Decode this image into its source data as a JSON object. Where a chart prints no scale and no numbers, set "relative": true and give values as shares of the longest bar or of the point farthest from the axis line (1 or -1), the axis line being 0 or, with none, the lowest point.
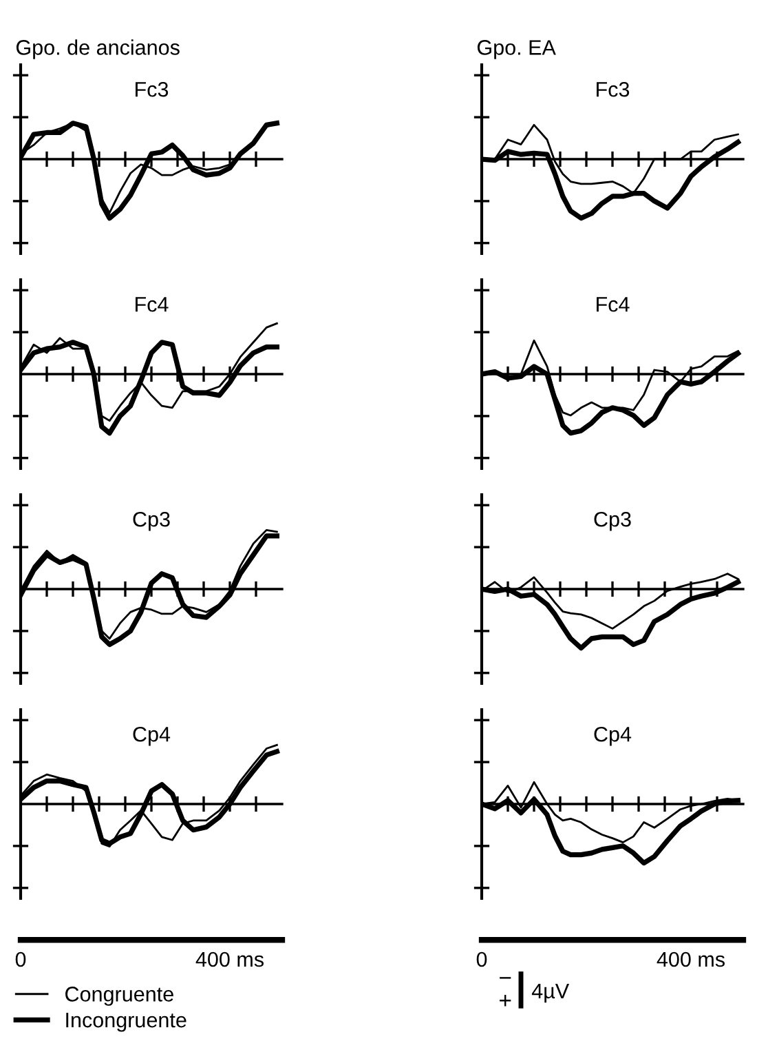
{
  "chart_data": [
    {
      "type": "line",
      "subtitle": "Gpo. de ancianos",
      "title": "Fc3",
      "relative": true,
      "x": [
        0,
        25,
        50,
        75,
        100,
        125,
        140,
        155,
        170,
        190,
        210,
        230,
        250,
        270,
        290,
        310,
        330,
        355,
        380,
        400,
        420,
        445,
        470,
        490
      ],
      "xlim": [
        0,
        500
      ],
      "xticks": [
        {
          "value": 50,
          "label": null
        },
        {
          "value": 100,
          "label": null
        },
        {
          "value": 150,
          "label": null
        },
        {
          "value": 200,
          "label": null
        },
        {
          "value": 250,
          "label": null
        },
        {
          "value": 300,
          "label": null
        },
        {
          "value": 350,
          "label": null
        },
        {
          "value": 400,
          "label": null
        },
        {
          "value": 450,
          "label": null
        }
      ],
      "tick_labels": false,
      "series": [
        {
          "color": "#000000",
          "values": [
            0.09,
            0.24,
            0.45,
            0.52,
            0.61,
            0.48,
            0.06,
            -0.67,
            -0.91,
            -0.55,
            -0.24,
            -0.09,
            -0.15,
            -0.27,
            -0.27,
            -0.18,
            -0.12,
            -0.18,
            -0.15,
            -0.09,
            0.06,
            0.24,
            0.55,
            0.61
          ]
        },
        {
          "color": "#000000",
          "values": [
            0.03,
            0.42,
            0.45,
            0.45,
            0.61,
            0.55,
            0,
            -0.76,
            -1,
            -0.85,
            -0.61,
            -0.27,
            0.09,
            0.12,
            0.24,
            0.06,
            -0.18,
            -0.27,
            -0.24,
            -0.15,
            0.09,
            0.27,
            0.58,
            0.61
          ]
        }
      ]
    },
    {
      "type": "line",
      "title": "Fc4",
      "relative": true,
      "x": [
        0,
        25,
        50,
        75,
        100,
        125,
        140,
        155,
        170,
        190,
        210,
        230,
        250,
        270,
        290,
        310,
        330,
        355,
        380,
        400,
        420,
        445,
        470,
        490
      ],
      "xlim": [
        0,
        500
      ],
      "xticks": [
        {
          "value": 50,
          "label": null
        },
        {
          "value": 100,
          "label": null
        },
        {
          "value": 150,
          "label": null
        },
        {
          "value": 200,
          "label": null
        },
        {
          "value": 250,
          "label": null
        },
        {
          "value": 300,
          "label": null
        },
        {
          "value": 350,
          "label": null
        },
        {
          "value": 400,
          "label": null
        },
        {
          "value": 450,
          "label": null
        }
      ],
      "tick_labels": false,
      "series": [
        {
          "color": "#000000",
          "values": [
            0.11,
            0.5,
            0.36,
            0.61,
            0.43,
            0.43,
            0,
            -0.71,
            -0.79,
            -0.54,
            -0.32,
            -0.14,
            -0.36,
            -0.54,
            -0.57,
            -0.29,
            -0.29,
            -0.29,
            -0.21,
            0,
            0.29,
            0.54,
            0.79,
            0.86
          ]
        },
        {
          "color": "#000000",
          "values": [
            0.07,
            0.36,
            0.43,
            0.46,
            0.54,
            0.46,
            0,
            -0.89,
            -1,
            -0.71,
            -0.54,
            -0.11,
            0.36,
            0.54,
            0.5,
            -0.21,
            -0.32,
            -0.32,
            -0.36,
            -0.14,
            0.14,
            0.36,
            0.46,
            0.46
          ]
        }
      ]
    },
    {
      "type": "line",
      "title": "Cp3",
      "relative": true,
      "x": [
        0,
        25,
        50,
        75,
        100,
        125,
        140,
        155,
        170,
        190,
        210,
        230,
        250,
        270,
        290,
        310,
        330,
        355,
        380,
        400,
        420,
        445,
        470,
        490
      ],
      "xlim": [
        0,
        500
      ],
      "xticks": [
        {
          "value": 50,
          "label": null
        },
        {
          "value": 100,
          "label": null
        },
        {
          "value": 150,
          "label": null
        },
        {
          "value": 200,
          "label": null
        },
        {
          "value": 250,
          "label": null
        },
        {
          "value": 300,
          "label": null
        },
        {
          "value": 350,
          "label": null
        },
        {
          "value": 400,
          "label": null
        },
        {
          "value": 450,
          "label": null
        }
      ],
      "tick_labels": false,
      "series": [
        {
          "color": "#000000",
          "values": [
            -0.03,
            0.39,
            0.65,
            0.45,
            0.58,
            0.45,
            -0.1,
            -0.71,
            -0.84,
            -0.58,
            -0.39,
            -0.32,
            -0.35,
            -0.42,
            -0.42,
            -0.29,
            -0.32,
            -0.39,
            -0.26,
            -0.03,
            0.39,
            0.77,
            1,
            0.97
          ]
        },
        {
          "color": "#000000",
          "values": [
            -0.1,
            0.32,
            0.58,
            0.45,
            0.52,
            0.42,
            -0.16,
            -0.81,
            -0.94,
            -0.84,
            -0.71,
            -0.39,
            0.1,
            0.26,
            0.19,
            -0.26,
            -0.45,
            -0.48,
            -0.29,
            -0.1,
            0.26,
            0.58,
            0.9,
            0.9
          ]
        }
      ]
    },
    {
      "type": "line",
      "title": "Cp4",
      "relative": true,
      "x": [
        0,
        25,
        50,
        75,
        100,
        125,
        140,
        155,
        170,
        190,
        210,
        230,
        250,
        270,
        290,
        310,
        330,
        355,
        380,
        400,
        420,
        445,
        470,
        490
      ],
      "xlim": [
        0,
        500
      ],
      "xticks": [
        0,
        {
          "value": 50,
          "label": null
        },
        {
          "value": 100,
          "label": null
        },
        {
          "value": 150,
          "label": null
        },
        {
          "value": 200,
          "label": null
        },
        {
          "value": 250,
          "label": null
        },
        {
          "value": 300,
          "label": null
        },
        {
          "value": 350,
          "label": null
        },
        {
          "value": 400,
          "label": "400 ms"
        },
        {
          "value": 450,
          "label": null
        }
      ],
      "tick_labels": "x",
      "legend": "bottom",
      "series": [
        {
          "name": "Congruente",
          "color": "#000000",
          "values": [
            0.14,
            0.39,
            0.5,
            0.44,
            0.39,
            0.22,
            -0.17,
            -0.67,
            -0.72,
            -0.44,
            -0.28,
            -0.11,
            -0.33,
            -0.56,
            -0.61,
            -0.33,
            -0.28,
            -0.28,
            -0.11,
            0.11,
            0.39,
            0.67,
            0.94,
            1
          ]
        },
        {
          "name": "Incongruente",
          "color": "#000000",
          "values": [
            0.08,
            0.28,
            0.39,
            0.39,
            0.33,
            0.28,
            -0.14,
            -0.61,
            -0.67,
            -0.56,
            -0.5,
            -0.17,
            0.22,
            0.33,
            0.17,
            -0.28,
            -0.44,
            -0.39,
            -0.22,
            0,
            0.28,
            0.56,
            0.83,
            0.89
          ]
        }
      ]
    },
    {
      "type": "line",
      "subtitle": "Gpo. EA",
      "title": "Fc3",
      "relative": true,
      "x": [
        0,
        25,
        50,
        75,
        100,
        125,
        140,
        155,
        170,
        190,
        210,
        230,
        250,
        270,
        290,
        310,
        330,
        355,
        380,
        400,
        420,
        445,
        470,
        490
      ],
      "xlim": [
        0,
        500
      ],
      "xticks": [
        {
          "value": 50,
          "label": null
        },
        {
          "value": 100,
          "label": null
        },
        {
          "value": 150,
          "label": null
        },
        {
          "value": 200,
          "label": null
        },
        {
          "value": 250,
          "label": null
        },
        {
          "value": 300,
          "label": null
        },
        {
          "value": 350,
          "label": null
        },
        {
          "value": 400,
          "label": null
        },
        {
          "value": 450,
          "label": null
        }
      ],
      "tick_labels": false,
      "series": [
        {
          "color": "#000000",
          "values": [
            0,
            0,
            0.33,
            0.25,
            0.58,
            0.33,
            -0.04,
            -0.25,
            -0.38,
            -0.42,
            -0.42,
            -0.4,
            -0.38,
            -0.46,
            -0.58,
            -0.33,
            0,
            0,
            0,
            0.13,
            0.13,
            0.33,
            0.38,
            0.42
          ]
        },
        {
          "color": "#000000",
          "values": [
            0,
            -0.02,
            0.13,
            0.08,
            0.1,
            0.08,
            -0.25,
            -0.63,
            -0.88,
            -1,
            -0.92,
            -0.75,
            -0.63,
            -0.63,
            -0.58,
            -0.58,
            -0.71,
            -0.83,
            -0.58,
            -0.29,
            -0.13,
            0.04,
            0.17,
            0.29
          ]
        }
      ]
    },
    {
      "type": "line",
      "title": "Fc4",
      "relative": true,
      "x": [
        0,
        25,
        50,
        75,
        100,
        125,
        140,
        155,
        170,
        190,
        210,
        230,
        250,
        270,
        290,
        310,
        330,
        355,
        380,
        400,
        420,
        445,
        470,
        490
      ],
      "xlim": [
        0,
        500
      ],
      "xticks": [
        {
          "value": 50,
          "label": null
        },
        {
          "value": 100,
          "label": null
        },
        {
          "value": 150,
          "label": null
        },
        {
          "value": 200,
          "label": null
        },
        {
          "value": 250,
          "label": null
        },
        {
          "value": 300,
          "label": null
        },
        {
          "value": 350,
          "label": null
        },
        {
          "value": 400,
          "label": null
        },
        {
          "value": 450,
          "label": null
        }
      ],
      "tick_labels": false,
      "series": [
        {
          "color": "#000000",
          "values": [
            0,
            0.04,
            -0.07,
            0,
            0.57,
            0.13,
            -0.35,
            -0.65,
            -0.7,
            -0.57,
            -0.48,
            -0.57,
            -0.57,
            -0.57,
            -0.61,
            -0.35,
            0.07,
            0.04,
            -0.13,
            0.09,
            0.13,
            0.3,
            0.3,
            0.39
          ]
        },
        {
          "color": "#000000",
          "values": [
            0,
            0.04,
            -0.07,
            -0.04,
            0.13,
            0,
            -0.43,
            -0.87,
            -1,
            -0.96,
            -0.83,
            -0.65,
            -0.57,
            -0.61,
            -0.7,
            -0.87,
            -0.74,
            -0.35,
            -0.13,
            -0.17,
            -0.13,
            0.04,
            0.22,
            0.35
          ]
        }
      ]
    },
    {
      "type": "line",
      "title": "Cp3",
      "relative": true,
      "x": [
        0,
        25,
        50,
        75,
        100,
        125,
        140,
        155,
        170,
        190,
        210,
        230,
        250,
        270,
        290,
        310,
        330,
        355,
        380,
        400,
        420,
        445,
        470,
        490
      ],
      "xlim": [
        0,
        500
      ],
      "xticks": [
        {
          "value": 50,
          "label": null
        },
        {
          "value": 100,
          "label": null
        },
        {
          "value": 150,
          "label": null
        },
        {
          "value": 200,
          "label": null
        },
        {
          "value": 250,
          "label": null
        },
        {
          "value": 300,
          "label": null
        },
        {
          "value": 350,
          "label": null
        },
        {
          "value": 400,
          "label": null
        },
        {
          "value": 450,
          "label": null
        }
      ],
      "tick_labels": false,
      "series": [
        {
          "color": "#000000",
          "values": [
            -0.03,
            0.12,
            -0.06,
            0.03,
            0.2,
            -0.06,
            -0.23,
            -0.38,
            -0.41,
            -0.43,
            -0.49,
            -0.58,
            -0.67,
            -0.55,
            -0.43,
            -0.29,
            -0.2,
            -0.03,
            0.04,
            0.09,
            0.12,
            0.17,
            0.26,
            0.17
          ]
        },
        {
          "color": "#000000",
          "values": [
            0,
            -0.04,
            0,
            -0.12,
            -0.09,
            -0.26,
            -0.43,
            -0.64,
            -0.84,
            -1,
            -0.84,
            -0.81,
            -0.81,
            -0.81,
            -0.94,
            -0.87,
            -0.55,
            -0.43,
            -0.26,
            -0.17,
            -0.12,
            -0.07,
            0.03,
            0.12
          ]
        }
      ]
    },
    {
      "type": "line",
      "title": "Cp4",
      "relative": true,
      "x": [
        0,
        25,
        50,
        75,
        100,
        125,
        140,
        155,
        170,
        190,
        210,
        230,
        250,
        270,
        290,
        310,
        330,
        355,
        380,
        400,
        420,
        445,
        470,
        490
      ],
      "xlim": [
        0,
        500
      ],
      "xticks": [
        0,
        {
          "value": 50,
          "label": null
        },
        {
          "value": 100,
          "label": null
        },
        {
          "value": 150,
          "label": null
        },
        {
          "value": 200,
          "label": null
        },
        {
          "value": 250,
          "label": null
        },
        {
          "value": 300,
          "label": null
        },
        {
          "value": 350,
          "label": null
        },
        {
          "value": 400,
          "label": "400 ms"
        },
        {
          "value": 450,
          "label": null
        }
      ],
      "tick_labels": "x",
      "annotations": [
        "−",
        "+",
        "4µV"
      ],
      "series": [
        {
          "color": "#000000",
          "values": [
            0,
            0.03,
            0.31,
            -0.06,
            0.37,
            0,
            -0.18,
            -0.28,
            -0.25,
            -0.31,
            -0.43,
            -0.52,
            -0.58,
            -0.65,
            -0.55,
            -0.31,
            -0.4,
            -0.25,
            -0.09,
            -0.03,
            0,
            0.05,
            0.09,
            0.06
          ]
        },
        {
          "color": "#000000",
          "values": [
            0,
            -0.08,
            0.06,
            -0.15,
            0.08,
            -0.18,
            -0.54,
            -0.8,
            -0.86,
            -0.86,
            -0.83,
            -0.77,
            -0.74,
            -0.71,
            -0.83,
            -1,
            -0.89,
            -0.62,
            -0.37,
            -0.25,
            -0.12,
            0,
            0.05,
            0.06
          ]
        }
      ]
    }
  ]
}
